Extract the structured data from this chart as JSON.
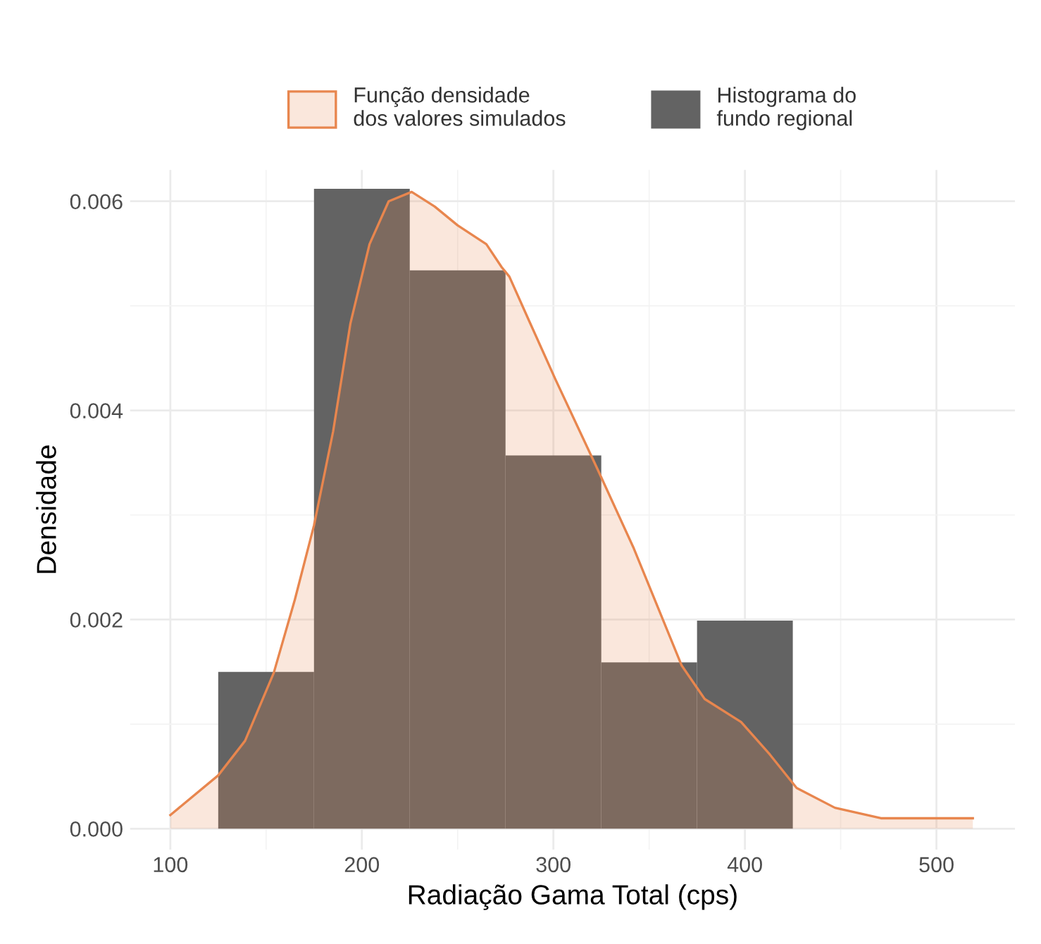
{
  "chart_data": {
    "type": "histogram",
    "xlabel": "Radiação Gama Total (cps)",
    "ylabel": "Densidade",
    "bins": [
      125,
      175,
      225,
      275,
      325,
      375,
      425
    ],
    "series": [
      {
        "name": "Histograma do\nfundo regional",
        "color": "#636363",
        "values": [
          0.0015,
          0.00612,
          0.00534,
          0.00357,
          0.00159,
          0.00199
        ]
      },
      {
        "name": "Função densidade\ndos valores simulados",
        "type": "area",
        "color": "#e8864e",
        "x": [
          100,
          125,
          139,
          154,
          165,
          175,
          185,
          194,
          204,
          214,
          226,
          238,
          250,
          265,
          273,
          277,
          287,
          301,
          323,
          342,
          367,
          379,
          398,
          413,
          427,
          447,
          471,
          490,
          519
        ],
        "values": [
          0.00013,
          0.00051,
          0.00084,
          0.00149,
          0.00219,
          0.0029,
          0.0038,
          0.00483,
          0.00559,
          0.006,
          0.00609,
          0.00595,
          0.00577,
          0.00559,
          0.00537,
          0.00528,
          0.00487,
          0.0043,
          0.00344,
          0.00268,
          0.00156,
          0.00124,
          0.00102,
          0.00071,
          0.00039,
          0.0002,
          0.0001,
          0.0001,
          0.0001
        ]
      }
    ],
    "xlim": [
      79,
      541
    ],
    "ylim": [
      -0.0002,
      0.0063
    ],
    "xticks": [
      100,
      200,
      300,
      400,
      500
    ],
    "yticks": [
      {
        "value": 0,
        "label": "0.000"
      },
      {
        "value": 0.002,
        "label": "0.002"
      },
      {
        "value": 0.004,
        "label": "0.004"
      },
      {
        "value": 0.006,
        "label": "0.006"
      }
    ],
    "grid": true,
    "legend": "top"
  }
}
